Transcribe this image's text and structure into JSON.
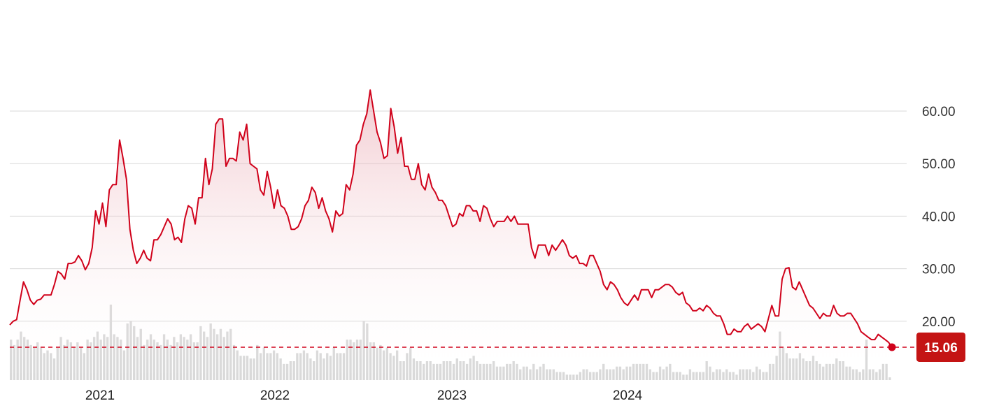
{
  "chart_data": {
    "type": "line",
    "title": "",
    "xlabel": "",
    "ylabel": "",
    "ylim": [
      10,
      65
    ],
    "y_ticks": [
      "60.00",
      "50.00",
      "40.00",
      "30.00",
      "20.00"
    ],
    "x_ticks": [
      "2021",
      "2022",
      "2023",
      "2024"
    ],
    "grid": true,
    "legend": "none",
    "current_price": "15.06",
    "colors": {
      "line": "#d0021b",
      "area": "#f3c6cc",
      "grid": "#d8d8d8",
      "volume": "#d9d9d9",
      "badge": "#c41414"
    },
    "series": [
      {
        "values": [
          19.3,
          20.0,
          20.3,
          24.0,
          27.5,
          26.0,
          24.0,
          23.2,
          24.0,
          24.2,
          25.0,
          25.0,
          25.0,
          27.0,
          29.5,
          29.0,
          28.0,
          31.0,
          31.0,
          31.3,
          32.5,
          31.5,
          29.8,
          31.0,
          34.0,
          41.0,
          38.5,
          42.5,
          38.0,
          45.0,
          46.0,
          46.0,
          54.5,
          51.0,
          47.0,
          37.5,
          33.5,
          31.0,
          32.0,
          33.5,
          32.0,
          31.5,
          35.5,
          35.5,
          36.5,
          38.0,
          39.5,
          38.5,
          35.5,
          36.0,
          35.0,
          39.5,
          42.0,
          41.5,
          38.5,
          43.5,
          43.5,
          51.0,
          46.0,
          49.0,
          57.5,
          58.5,
          58.5,
          49.5,
          51.0,
          51.0,
          50.5,
          56.0,
          54.5,
          57.5,
          50.0,
          49.5,
          49.0,
          45.0,
          44.0,
          48.5,
          45.5,
          41.5,
          45.0,
          42.0,
          41.5,
          40.0,
          37.5,
          37.5,
          38.0,
          39.5,
          42.0,
          43.0,
          45.5,
          44.5,
          41.5,
          43.5,
          41.0,
          39.5,
          37.0,
          41.0,
          40.0,
          40.5,
          46.0,
          45.0,
          48.0,
          53.5,
          54.5,
          57.5,
          59.5,
          64.0,
          60.0,
          56.0,
          54.0,
          51.0,
          51.5,
          60.5,
          57.0,
          52.0,
          55.0,
          49.5,
          49.5,
          47.0,
          47.0,
          50.0,
          46.0,
          45.0,
          48.0,
          45.5,
          44.5,
          43.0,
          43.0,
          42.0,
          40.0,
          38.0,
          38.5,
          40.5,
          40.0,
          42.0,
          42.0,
          41.0,
          41.0,
          39.0,
          42.0,
          41.5,
          39.5,
          38.0,
          39.0,
          39.0,
          39.0,
          40.0,
          39.0,
          40.0,
          38.5,
          38.5,
          38.5,
          38.5,
          34.0,
          32.0,
          34.5,
          34.5,
          34.5,
          32.5,
          34.5,
          33.5,
          34.5,
          35.5,
          34.5,
          32.5,
          32.0,
          32.5,
          31.0,
          31.0,
          30.5,
          32.5,
          32.5,
          31.0,
          29.5,
          27.0,
          26.0,
          27.5,
          27.0,
          26.0,
          24.5,
          23.5,
          23.0,
          24.0,
          25.0,
          24.0,
          26.0,
          26.0,
          26.0,
          24.5,
          26.0,
          26.0,
          26.5,
          27.0,
          27.0,
          26.5,
          25.5,
          25.0,
          25.5,
          23.5,
          23.0,
          22.0,
          22.0,
          22.5,
          22.0,
          23.0,
          22.5,
          21.5,
          21.0,
          21.0,
          19.5,
          17.5,
          17.5,
          18.5,
          18.0,
          18.0,
          19.0,
          19.5,
          18.5,
          19.0,
          19.5,
          19.0,
          18.0,
          20.5,
          23.0,
          21.0,
          21.0,
          28.0,
          30.0,
          30.2,
          26.5,
          26.0,
          27.5,
          26.0,
          24.5,
          23.0,
          22.5,
          21.5,
          20.5,
          21.5,
          21.0,
          21.0,
          23.0,
          21.5,
          21.0,
          21.0,
          21.5,
          21.5,
          20.5,
          19.5,
          18.0,
          17.5,
          17.0,
          16.5,
          16.5,
          17.5,
          17.0,
          16.5,
          16.0,
          15.06
        ]
      }
    ],
    "volume": [
      15,
      13,
      15,
      18,
      16,
      15,
      13,
      12,
      14,
      12,
      10,
      11,
      10,
      8,
      12,
      16,
      13,
      15,
      14,
      12,
      14,
      12,
      10,
      15,
      14,
      16,
      18,
      15,
      17,
      16,
      28,
      17,
      16,
      15,
      11,
      21,
      22,
      20,
      16,
      19,
      13,
      15,
      17,
      15,
      14,
      13,
      17,
      15,
      13,
      16,
      14,
      17,
      16,
      15,
      17,
      14,
      14,
      20,
      18,
      16,
      21,
      19,
      17,
      19,
      16,
      18,
      19,
      13,
      11,
      9,
      9,
      9,
      8,
      8,
      13,
      10,
      12,
      10,
      10,
      11,
      10,
      8,
      6,
      6,
      7,
      7,
      10,
      10,
      11,
      10,
      8,
      7,
      11,
      10,
      8,
      10,
      9,
      12,
      10,
      10,
      10,
      15,
      15,
      14,
      15,
      15,
      22,
      21,
      14,
      14,
      12,
      13,
      11,
      12,
      10,
      9,
      11,
      7,
      7,
      10,
      12,
      8,
      7,
      7,
      6,
      7,
      7,
      6,
      6,
      6,
      7,
      7,
      7,
      6,
      8,
      7,
      7,
      6,
      8,
      9,
      7,
      6,
      6,
      6,
      6,
      7,
      5,
      5,
      5,
      6,
      6,
      7,
      6,
      4,
      5,
      5,
      4,
      6,
      4,
      5,
      6,
      4,
      4,
      4,
      3,
      3,
      3,
      2,
      2,
      2,
      2,
      3,
      4,
      4,
      3,
      3,
      3,
      4,
      6,
      4,
      4,
      4,
      5,
      5,
      4,
      5,
      5,
      6,
      6,
      6,
      6,
      6,
      4,
      3,
      3,
      5,
      4,
      5,
      6,
      3,
      3,
      3,
      2,
      2,
      4,
      3,
      3,
      3,
      3,
      7,
      5,
      3,
      4,
      4,
      3,
      4,
      3,
      3,
      2,
      4,
      4,
      4,
      4,
      3,
      5,
      4,
      3,
      3,
      6,
      6,
      9,
      18,
      12,
      10,
      8,
      8,
      8,
      10,
      8,
      7,
      7,
      9,
      7,
      6,
      5,
      6,
      6,
      6,
      8,
      7,
      7,
      5,
      5,
      4,
      4,
      3,
      4,
      15,
      4,
      4,
      3,
      4,
      6,
      6,
      1
    ]
  }
}
